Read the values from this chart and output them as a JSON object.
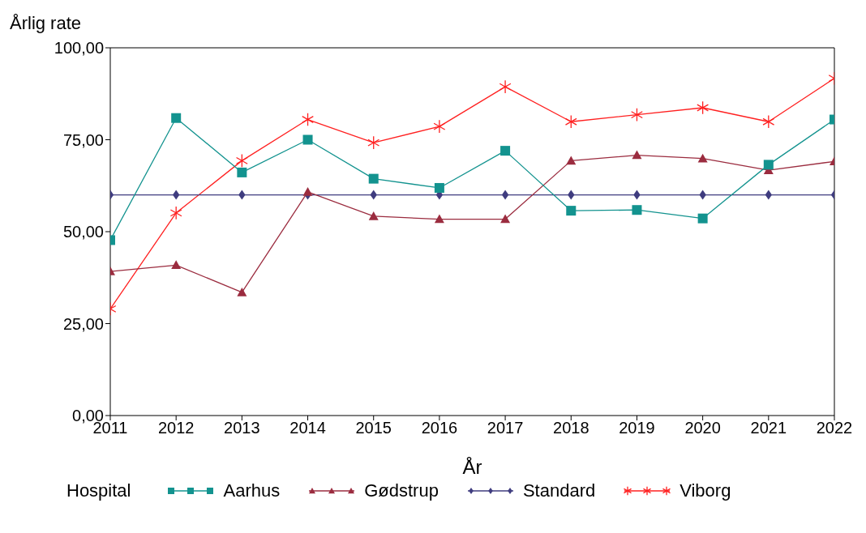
{
  "chart_data": {
    "type": "line",
    "xlabel": "År",
    "ylabel": "Årlig rate",
    "legend_title": "Hospital",
    "legend": "bottom",
    "grid": false,
    "x": [
      2011,
      2012,
      2013,
      2014,
      2015,
      2016,
      2017,
      2018,
      2019,
      2020,
      2021,
      2022
    ],
    "xlim": [
      2011,
      2022
    ],
    "xticks": [
      2011,
      2012,
      2013,
      2014,
      2015,
      2016,
      2017,
      2018,
      2019,
      2020,
      2021,
      2022
    ],
    "ylim": [
      0,
      100
    ],
    "yticks": [
      {
        "value": 0,
        "label": "0,00"
      },
      {
        "value": 25,
        "label": "25,00"
      },
      {
        "value": 50,
        "label": "50,00"
      },
      {
        "value": 75,
        "label": "75,00"
      },
      {
        "value": 100,
        "label": "100,00"
      }
    ],
    "series": [
      {
        "name": "Aarhus",
        "color": "#13938f",
        "marker": "square",
        "values": [
          47.7,
          80.9,
          66.1,
          75.0,
          64.4,
          61.9,
          72.0,
          55.7,
          55.9,
          53.6,
          68.2,
          80.5
        ]
      },
      {
        "name": "Gødstrup",
        "color": "#9b2c3f",
        "marker": "triangle",
        "values": [
          39.2,
          40.9,
          33.5,
          60.8,
          54.2,
          53.4,
          53.4,
          69.3,
          70.8,
          69.9,
          66.7,
          69.1
        ]
      },
      {
        "name": "Standard",
        "color": "#3f3c7f",
        "marker": "diamond",
        "values": [
          60,
          60,
          60,
          60,
          60,
          60,
          60,
          60,
          60,
          60,
          60,
          60
        ]
      },
      {
        "name": "Viborg",
        "color": "#ff2020",
        "marker": "cross",
        "values": [
          29.0,
          55.1,
          69.3,
          80.5,
          74.2,
          78.6,
          89.4,
          79.9,
          81.8,
          83.7,
          79.9,
          91.7
        ]
      }
    ]
  }
}
